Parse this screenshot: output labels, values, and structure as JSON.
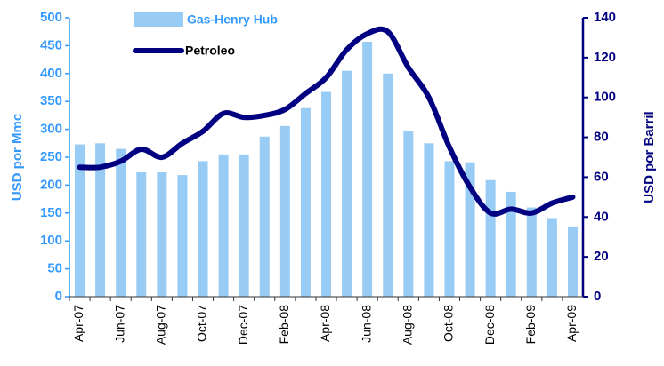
{
  "chart_data": {
    "type": "bar",
    "categories": [
      "Apr-07",
      null,
      "Jun-07",
      null,
      "Aug-07",
      null,
      "Oct-07",
      null,
      "Dec-07",
      null,
      "Feb-08",
      null,
      "Apr-08",
      null,
      "Jun-08",
      null,
      "Aug-08",
      null,
      "Oct-08",
      null,
      "Dec-08",
      null,
      "Feb-09",
      null,
      "Apr-09"
    ],
    "series": [
      {
        "name": "Gas-Henry Hub",
        "type": "bar",
        "color": "#99ccf5",
        "values": [
          273,
          275,
          265,
          223,
          223,
          218,
          243,
          255,
          255,
          287,
          306,
          338,
          367,
          405,
          457,
          400,
          297,
          275,
          243,
          241,
          209,
          188,
          160,
          141,
          126
        ]
      },
      {
        "name": "Petroleo",
        "type": "line",
        "axis": "y2",
        "color": "#000080",
        "values": [
          65,
          65,
          68,
          74,
          70,
          77,
          83,
          92,
          90,
          91,
          94,
          102,
          110,
          124,
          132,
          133,
          115,
          100,
          75,
          55,
          42,
          44,
          42,
          47,
          50
        ]
      }
    ],
    "ylabel": "USD por Mmc",
    "y2label": "USD por Barril",
    "ylim": [
      0,
      500
    ],
    "yticks": [
      0,
      50,
      100,
      150,
      200,
      250,
      300,
      350,
      400,
      450,
      500
    ],
    "y2lim": [
      0,
      140
    ],
    "y2ticks": [
      0,
      20,
      40,
      60,
      80,
      100,
      120,
      140
    ]
  }
}
